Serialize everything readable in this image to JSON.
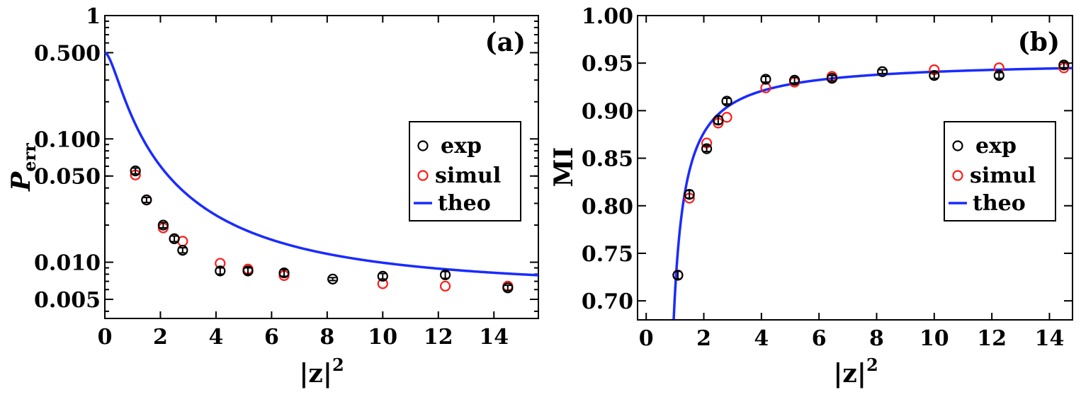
{
  "chart_data": [
    {
      "type": "scatter",
      "panel_label": "(a)",
      "xlabel": "|z|",
      "xlabel_sup": "2",
      "ylabel": "P",
      "ylabel_sub": "err",
      "yscale": "log",
      "xlim": [
        0,
        15.6
      ],
      "ylim": [
        0.0035,
        1.0
      ],
      "x_ticks": [
        0,
        2,
        4,
        6,
        8,
        10,
        12,
        14
      ],
      "x_tick_labels": [
        "0",
        "2",
        "4",
        "6",
        "8",
        "10",
        "12",
        "14"
      ],
      "y_ticks": [
        0.005,
        0.01,
        0.05,
        0.1,
        0.5,
        1
      ],
      "y_tick_labels": [
        "0.005",
        "0.010",
        "0.050",
        "0.100",
        "0.500",
        "1"
      ],
      "legend": {
        "position": "right",
        "entries": [
          "exp",
          "simul",
          "theo"
        ]
      },
      "series": [
        {
          "name": "exp",
          "style": "open-circle-black",
          "x": [
            1.1,
            1.5,
            2.1,
            2.5,
            2.8,
            4.15,
            5.15,
            6.45,
            8.2,
            10.0,
            12.25,
            14.5
          ],
          "y": [
            0.055,
            0.032,
            0.02,
            0.0155,
            0.0125,
            0.0085,
            0.0085,
            0.0082,
            0.0073,
            0.0077,
            0.0079,
            0.0062
          ],
          "yerr": [
            0.003,
            0.0015,
            0.001,
            0.0008,
            0.0006,
            0.0005,
            0.0005,
            0.0005,
            0.0002,
            0.0004,
            0.0005,
            0.0003
          ]
        },
        {
          "name": "simul",
          "style": "open-circle-red",
          "x": [
            1.1,
            1.5,
            2.1,
            2.5,
            2.8,
            4.15,
            5.15,
            6.45,
            10.0,
            12.25,
            14.5
          ],
          "y": [
            0.051,
            0.032,
            0.019,
            0.0155,
            0.0148,
            0.0098,
            0.0088,
            0.0078,
            0.0067,
            0.0064,
            0.0064
          ]
        },
        {
          "name": "theo",
          "style": "line-blue",
          "formula": "P(x) = 0.006 + 0.494 / (1 + 2.5·x^1.7)"
        }
      ]
    },
    {
      "type": "scatter",
      "panel_label": "(b)",
      "xlabel": "|z|",
      "xlabel_sup": "2",
      "ylabel": "MI",
      "yscale": "linear",
      "xlim": [
        -0.3,
        14.8
      ],
      "ylim": [
        0.68,
        1.0
      ],
      "x_ticks": [
        0,
        2,
        4,
        6,
        8,
        10,
        12,
        14
      ],
      "x_tick_labels": [
        "0",
        "2",
        "4",
        "6",
        "8",
        "10",
        "12",
        "14"
      ],
      "y_ticks": [
        0.7,
        0.75,
        0.8,
        0.85,
        0.9,
        0.95,
        1.0
      ],
      "y_tick_labels": [
        "0.70",
        "0.75",
        "0.80",
        "0.85",
        "0.90",
        "0.95",
        "1.00"
      ],
      "legend": {
        "position": "right",
        "entries": [
          "exp",
          "simul",
          "theo"
        ]
      },
      "series": [
        {
          "name": "exp",
          "style": "open-circle-black",
          "x": [
            1.1,
            1.5,
            2.1,
            2.5,
            2.8,
            4.15,
            5.15,
            6.45,
            8.2,
            10.0,
            12.25,
            14.5
          ],
          "y": [
            0.727,
            0.812,
            0.86,
            0.89,
            0.91,
            0.933,
            0.932,
            0.934,
            0.941,
            0.937,
            0.937,
            0.948
          ],
          "yerr": [
            0.004,
            0.004,
            0.003,
            0.004,
            0.003,
            0.003,
            0.003,
            0.003,
            0.002,
            0.003,
            0.003,
            0.003
          ]
        },
        {
          "name": "simul",
          "style": "open-circle-red",
          "x": [
            1.1,
            1.5,
            2.1,
            2.5,
            2.8,
            4.15,
            5.15,
            6.45,
            10.0,
            12.25,
            14.5
          ],
          "y": [
            0.727,
            0.808,
            0.866,
            0.887,
            0.893,
            0.924,
            0.93,
            0.936,
            0.943,
            0.945,
            0.945
          ]
        },
        {
          "name": "theo",
          "style": "line-blue",
          "formula": "MI(x) = 0.9525 - 0.11 / (x - 0.55)"
        }
      ]
    }
  ]
}
